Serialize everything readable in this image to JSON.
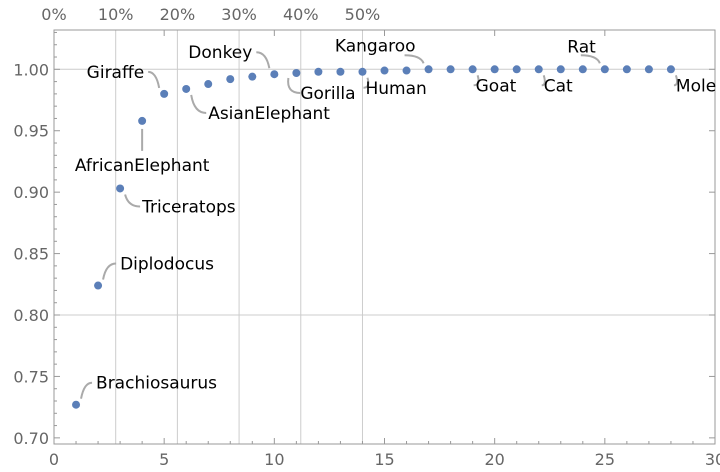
{
  "chart_data": {
    "type": "scatter",
    "title": "",
    "xlabel": "",
    "ylabel": "",
    "xlim": [
      0,
      30
    ],
    "ylim": [
      0.695,
      1.032
    ],
    "x_ticks": [
      0,
      5,
      10,
      15,
      20,
      25,
      30
    ],
    "x_tick_labels": [
      "0",
      "5",
      "10",
      "15",
      "20",
      "25",
      "30"
    ],
    "y_ticks": [
      0.7,
      0.75,
      0.8,
      0.85,
      0.9,
      0.95,
      1.0
    ],
    "y_tick_labels": [
      "0.70",
      "0.75",
      "0.80",
      "0.85",
      "0.90",
      "0.95",
      "1.00"
    ],
    "top_axis_ticks": [
      {
        "x": 0,
        "label": "0%"
      },
      {
        "x": 2.8,
        "label": "10%"
      },
      {
        "x": 5.6,
        "label": "20%"
      },
      {
        "x": 8.4,
        "label": "30%"
      },
      {
        "x": 11.2,
        "label": "40%"
      },
      {
        "x": 14.0,
        "label": "50%"
      }
    ],
    "vertical_gridlines_x": [
      2.8,
      5.6,
      8.4,
      11.2,
      14.0
    ],
    "horizontal_gridlines_y": [
      0.8,
      1.0
    ],
    "point_color": "#5b7fb8",
    "points": [
      {
        "x": 1,
        "y": 0.727
      },
      {
        "x": 2,
        "y": 0.824
      },
      {
        "x": 3,
        "y": 0.903
      },
      {
        "x": 4,
        "y": 0.958
      },
      {
        "x": 5,
        "y": 0.98
      },
      {
        "x": 6,
        "y": 0.984
      },
      {
        "x": 7,
        "y": 0.988
      },
      {
        "x": 8,
        "y": 0.992
      },
      {
        "x": 9,
        "y": 0.994
      },
      {
        "x": 10,
        "y": 0.996
      },
      {
        "x": 11,
        "y": 0.997
      },
      {
        "x": 12,
        "y": 0.998
      },
      {
        "x": 13,
        "y": 0.998
      },
      {
        "x": 14,
        "y": 0.998
      },
      {
        "x": 15,
        "y": 0.999
      },
      {
        "x": 16,
        "y": 0.999
      },
      {
        "x": 17,
        "y": 1.0
      },
      {
        "x": 18,
        "y": 1.0
      },
      {
        "x": 19,
        "y": 1.0
      },
      {
        "x": 20,
        "y": 1.0
      },
      {
        "x": 21,
        "y": 1.0
      },
      {
        "x": 22,
        "y": 1.0
      },
      {
        "x": 23,
        "y": 1.0
      },
      {
        "x": 24,
        "y": 1.0
      },
      {
        "x": 25,
        "y": 1.0
      },
      {
        "x": 26,
        "y": 1.0
      },
      {
        "x": 27,
        "y": 1.0
      },
      {
        "x": 28,
        "y": 1.0
      }
    ],
    "annotations": [
      {
        "label": "Brachiosaurus",
        "x": 1,
        "y": 0.727
      },
      {
        "label": "Diplodocus",
        "x": 2,
        "y": 0.824
      },
      {
        "label": "Triceratops",
        "x": 3,
        "y": 0.903
      },
      {
        "label": "AfricanElephant",
        "x": 4,
        "y": 0.958
      },
      {
        "label": "Giraffe",
        "x": 5,
        "y": 0.98
      },
      {
        "label": "AsianElephant",
        "x": 6,
        "y": 0.984
      },
      {
        "label": "Donkey",
        "x": 10,
        "y": 0.996
      },
      {
        "label": "Gorilla",
        "x": 11,
        "y": 0.997
      },
      {
        "label": "Kangaroo",
        "x": 17,
        "y": 1.0
      },
      {
        "label": "Human",
        "x": 14,
        "y": 0.998
      },
      {
        "label": "Goat",
        "x": 19,
        "y": 1.0
      },
      {
        "label": "Cat",
        "x": 22,
        "y": 1.0
      },
      {
        "label": "Rat",
        "x": 25,
        "y": 1.0
      },
      {
        "label": "Mole",
        "x": 28,
        "y": 1.0
      }
    ]
  }
}
